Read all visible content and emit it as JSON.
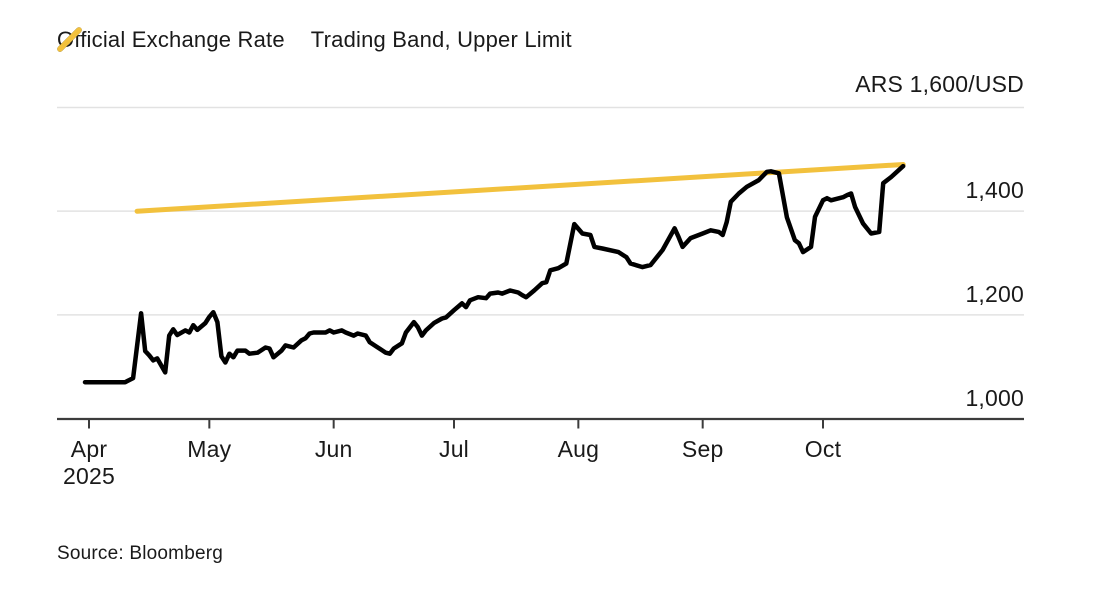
{
  "legend": [
    {
      "label": "Official Exchange Rate",
      "color": "#000000"
    },
    {
      "label": "Trading Band, Upper Limit",
      "color": "#F2C13D"
    }
  ],
  "source": "Source: Bloomberg",
  "colors": {
    "official_line": "#000000",
    "band_line": "#F2C13D",
    "gridline": "#E2E2E2",
    "axis": "#3C3C3C",
    "text": "#1a1a1a"
  },
  "chart_data": {
    "type": "line",
    "title": "",
    "xlabel": "",
    "ylabel": "ARS/USD",
    "x_unit": "days since 2025-04-01",
    "x_domain_days": [
      -8,
      233
    ],
    "ylim": [
      1000,
      1600
    ],
    "grid": true,
    "legend_position": "top-left",
    "y_axis": {
      "unit_label": "ARS 1,600/USD",
      "unit_value": 1600,
      "tick_values": [
        1400,
        1200,
        1000
      ],
      "gridline_values": [
        1600,
        1400,
        1200
      ],
      "baseline_value": 1000
    },
    "x_axis": {
      "ticks": [
        {
          "label": "Apr",
          "sub": "2025",
          "day": 0
        },
        {
          "label": "May",
          "sub": "",
          "day": 30
        },
        {
          "label": "Jun",
          "sub": "",
          "day": 61
        },
        {
          "label": "Jul",
          "sub": "",
          "day": 91
        },
        {
          "label": "Aug",
          "sub": "",
          "day": 122
        },
        {
          "label": "Sep",
          "sub": "",
          "day": 153
        },
        {
          "label": "Oct",
          "sub": "",
          "day": 183
        }
      ]
    },
    "series": [
      {
        "name": "Trading Band, Upper Limit",
        "color": "#F2C13D",
        "stroke_width": 5,
        "points": [
          [
            12,
            1400
          ],
          [
            203,
            1490
          ]
        ]
      },
      {
        "name": "Official Exchange Rate",
        "color": "#000000",
        "stroke_width": 4.5,
        "points": [
          [
            -1,
            1070
          ],
          [
            9,
            1070
          ],
          [
            11,
            1078
          ],
          [
            13,
            1203
          ],
          [
            14,
            1130
          ],
          [
            15,
            1122
          ],
          [
            16,
            1112
          ],
          [
            17,
            1116
          ],
          [
            19,
            1089
          ],
          [
            20,
            1160
          ],
          [
            21,
            1172
          ],
          [
            22,
            1161
          ],
          [
            24,
            1170
          ],
          [
            25,
            1166
          ],
          [
            26,
            1180
          ],
          [
            27,
            1171
          ],
          [
            29,
            1184
          ],
          [
            30,
            1196
          ],
          [
            31,
            1205
          ],
          [
            32,
            1186
          ],
          [
            33,
            1120
          ],
          [
            34,
            1108
          ],
          [
            35,
            1125
          ],
          [
            36,
            1118
          ],
          [
            37,
            1131
          ],
          [
            39,
            1131
          ],
          [
            40,
            1125
          ],
          [
            42,
            1127
          ],
          [
            44,
            1137
          ],
          [
            45,
            1135
          ],
          [
            46,
            1118
          ],
          [
            48,
            1131
          ],
          [
            49,
            1141
          ],
          [
            51,
            1137
          ],
          [
            53,
            1151
          ],
          [
            54,
            1155
          ],
          [
            55,
            1164
          ],
          [
            56,
            1166
          ],
          [
            59,
            1166
          ],
          [
            60,
            1170
          ],
          [
            61,
            1166
          ],
          [
            63,
            1170
          ],
          [
            64,
            1166
          ],
          [
            66,
            1160
          ],
          [
            67,
            1164
          ],
          [
            69,
            1160
          ],
          [
            70,
            1147
          ],
          [
            72,
            1137
          ],
          [
            74,
            1127
          ],
          [
            75,
            1125
          ],
          [
            76,
            1135
          ],
          [
            78,
            1145
          ],
          [
            79,
            1166
          ],
          [
            81,
            1186
          ],
          [
            82,
            1176
          ],
          [
            83,
            1160
          ],
          [
            84,
            1170
          ],
          [
            86,
            1184
          ],
          [
            88,
            1193
          ],
          [
            89,
            1195
          ],
          [
            91,
            1209
          ],
          [
            93,
            1222
          ],
          [
            94,
            1215
          ],
          [
            95,
            1228
          ],
          [
            97,
            1234
          ],
          [
            99,
            1232
          ],
          [
            100,
            1241
          ],
          [
            102,
            1243
          ],
          [
            103,
            1241
          ],
          [
            105,
            1247
          ],
          [
            107,
            1243
          ],
          [
            108,
            1238
          ],
          [
            109,
            1234
          ],
          [
            111,
            1247
          ],
          [
            113,
            1261
          ],
          [
            114,
            1263
          ],
          [
            115,
            1286
          ],
          [
            117,
            1290
          ],
          [
            119,
            1299
          ],
          [
            121,
            1375
          ],
          [
            123,
            1357
          ],
          [
            125,
            1354
          ],
          [
            126,
            1331
          ],
          [
            128,
            1328
          ],
          [
            132,
            1321
          ],
          [
            134,
            1311
          ],
          [
            135,
            1299
          ],
          [
            138,
            1292
          ],
          [
            140,
            1296
          ],
          [
            143,
            1325
          ],
          [
            146,
            1367
          ],
          [
            147,
            1350
          ],
          [
            148,
            1331
          ],
          [
            150,
            1348
          ],
          [
            153,
            1357
          ],
          [
            155,
            1363
          ],
          [
            157,
            1360
          ],
          [
            158,
            1354
          ],
          [
            159,
            1379
          ],
          [
            160,
            1418
          ],
          [
            162,
            1434
          ],
          [
            164,
            1447
          ],
          [
            167,
            1460
          ],
          [
            169,
            1476
          ],
          [
            170,
            1477
          ],
          [
            172,
            1473
          ],
          [
            174,
            1388
          ],
          [
            176,
            1344
          ],
          [
            177,
            1338
          ],
          [
            178,
            1321
          ],
          [
            180,
            1331
          ],
          [
            181,
            1389
          ],
          [
            183,
            1421
          ],
          [
            184,
            1425
          ],
          [
            185,
            1421
          ],
          [
            188,
            1427
          ],
          [
            189,
            1431
          ],
          [
            190,
            1434
          ],
          [
            191,
            1408
          ],
          [
            193,
            1376
          ],
          [
            195,
            1357
          ],
          [
            197,
            1360
          ],
          [
            198,
            1454
          ],
          [
            200,
            1466
          ],
          [
            203,
            1487
          ]
        ]
      }
    ]
  }
}
